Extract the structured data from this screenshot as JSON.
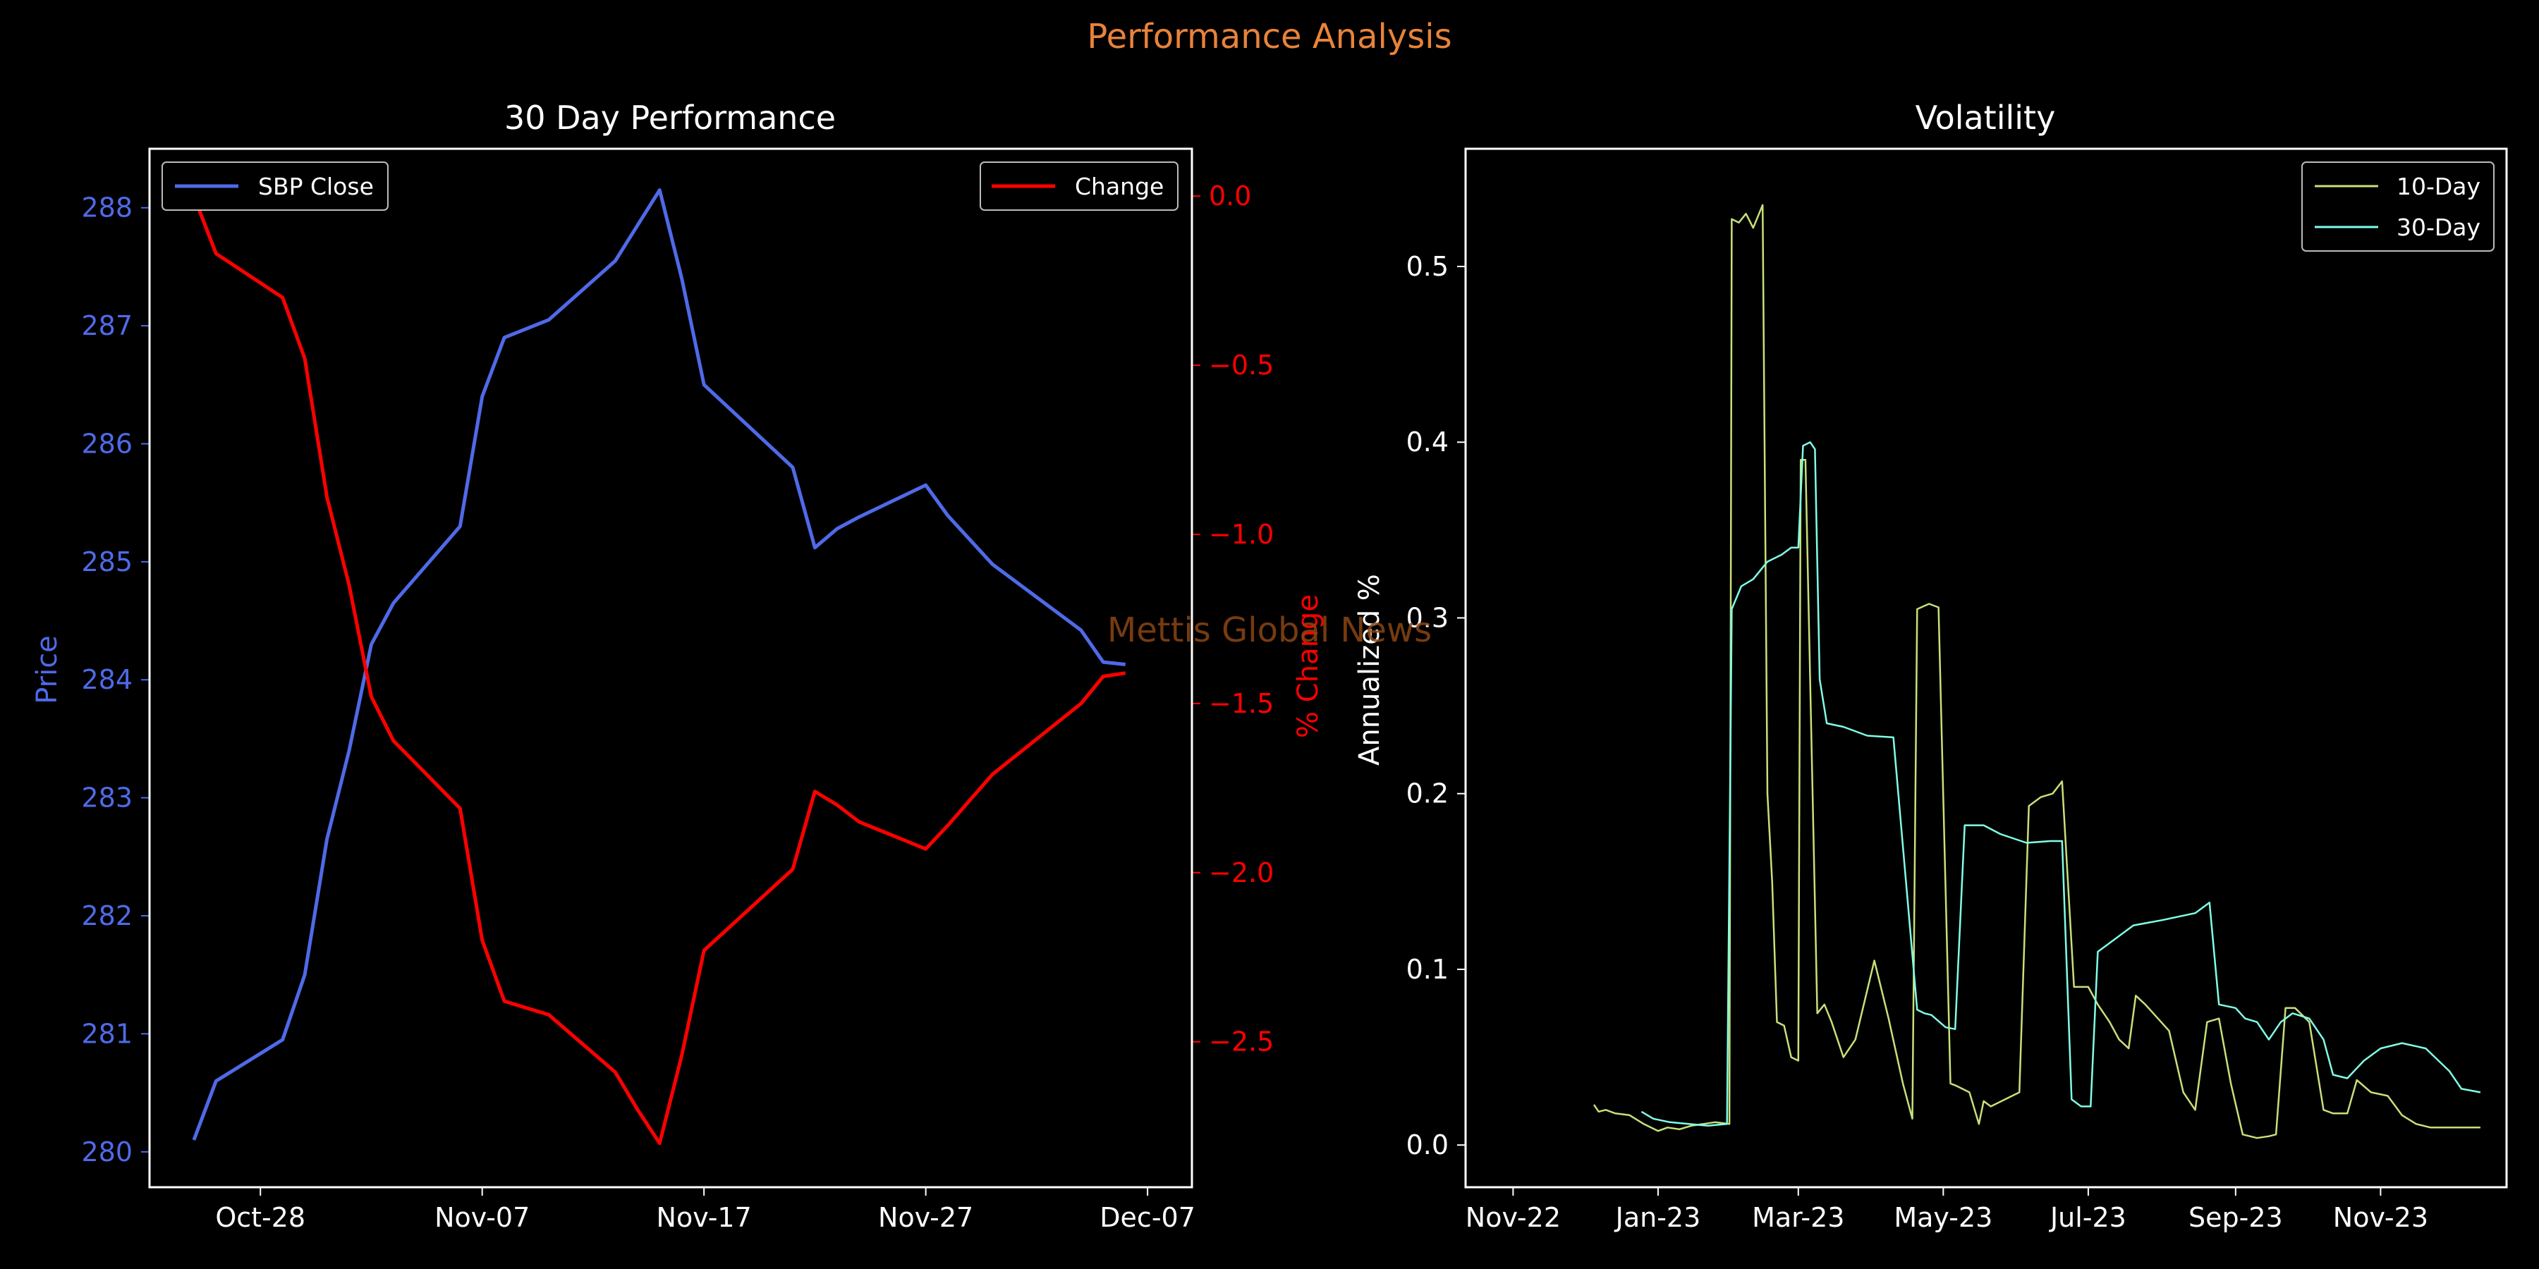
{
  "figure": {
    "suptitle": "Performance Analysis",
    "watermark": "Mettis Global News",
    "colors": {
      "background": "#000000",
      "suptitle": "#e8833a",
      "price": "#4f6ae8",
      "change": "#ff0000",
      "vol10": "#c8e07a",
      "vol30": "#80ffe8",
      "watermark": "#8b4513",
      "axes": "#ffffff"
    }
  },
  "chart_data": [
    {
      "type": "line",
      "title": "30 Day Performance",
      "xlabel": "",
      "x_tick_labels": [
        "Oct-28",
        "Nov-07",
        "Nov-17",
        "Nov-27",
        "Dec-07"
      ],
      "x_tick_dates": [
        "2023-10-28",
        "2023-11-07",
        "2023-11-17",
        "2023-11-27",
        "2023-12-07"
      ],
      "xlim": [
        "2023-10-23",
        "2023-12-09"
      ],
      "y_left": {
        "label": "Price",
        "ylim": [
          279.7,
          288.5
        ],
        "ticks": [
          280,
          281,
          282,
          283,
          284,
          285,
          286,
          287,
          288
        ]
      },
      "y_right": {
        "label": "% Change",
        "ylim": [
          -2.93,
          0.14
        ],
        "ticks": [
          0.0,
          -0.5,
          -1.0,
          -1.5,
          -2.0,
          -2.5
        ],
        "tick_labels": [
          "0.0",
          "−0.5",
          "−1.0",
          "−1.5",
          "−2.0",
          "−2.5"
        ]
      },
      "legend_left": {
        "placement": "upper left",
        "entries": [
          "SBP Close"
        ]
      },
      "legend_right": {
        "placement": "upper right",
        "entries": [
          "Change"
        ]
      },
      "series": [
        {
          "name": "SBP Close",
          "axis": "left",
          "x": [
            "2023-10-25",
            "2023-10-26",
            "2023-10-29",
            "2023-10-30",
            "2023-10-31",
            "2023-11-01",
            "2023-11-02",
            "2023-11-03",
            "2023-11-06",
            "2023-11-07",
            "2023-11-08",
            "2023-11-10",
            "2023-11-13",
            "2023-11-14",
            "2023-11-15",
            "2023-11-16",
            "2023-11-17",
            "2023-11-21",
            "2023-11-22",
            "2023-11-23",
            "2023-11-24",
            "2023-11-27",
            "2023-11-28",
            "2023-11-30",
            "2023-12-04",
            "2023-12-05",
            "2023-12-06"
          ],
          "values": [
            280.1,
            280.6,
            280.95,
            281.5,
            282.65,
            283.4,
            284.3,
            284.65,
            285.3,
            286.4,
            286.9,
            287.05,
            287.55,
            287.85,
            288.15,
            287.4,
            286.5,
            285.8,
            285.12,
            285.28,
            285.38,
            285.65,
            285.39,
            284.98,
            284.42,
            284.15,
            284.13
          ]
        },
        {
          "name": "Change",
          "axis": "right",
          "x": [
            "2023-10-25",
            "2023-10-26",
            "2023-10-29",
            "2023-10-30",
            "2023-10-31",
            "2023-11-01",
            "2023-11-02",
            "2023-11-03",
            "2023-11-06",
            "2023-11-07",
            "2023-11-08",
            "2023-11-10",
            "2023-11-13",
            "2023-11-14",
            "2023-11-15",
            "2023-11-16",
            "2023-11-17",
            "2023-11-21",
            "2023-11-22",
            "2023-11-23",
            "2023-11-24",
            "2023-11-27",
            "2023-11-28",
            "2023-11-30",
            "2023-12-04",
            "2023-12-05",
            "2023-12-06"
          ],
          "values": [
            0.0,
            -0.17,
            -0.3,
            -0.48,
            -0.89,
            -1.15,
            -1.48,
            -1.61,
            -1.81,
            -2.2,
            -2.38,
            -2.42,
            -2.59,
            -2.7,
            -2.8,
            -2.54,
            -2.23,
            -1.99,
            -1.76,
            -1.8,
            -1.85,
            -1.93,
            -1.86,
            -1.71,
            -1.5,
            -1.42,
            -1.41
          ]
        }
      ]
    },
    {
      "type": "line",
      "title": "Volatility",
      "xlabel": "",
      "ylabel": "Annualized %",
      "x_tick_labels": [
        "Nov-22",
        "Jan-23",
        "Mar-23",
        "May-23",
        "Jul-23",
        "Sep-23",
        "Nov-23"
      ],
      "x_tick_dates": [
        "2022-11-01",
        "2023-01-01",
        "2023-03-01",
        "2023-05-01",
        "2023-07-01",
        "2023-09-01",
        "2023-11-01"
      ],
      "xlim": [
        "2022-10-12",
        "2023-12-24"
      ],
      "ylim": [
        -0.024,
        0.567
      ],
      "y_ticks": [
        0.0,
        0.1,
        0.2,
        0.3,
        0.4,
        0.5
      ],
      "y_tick_labels": [
        "0.0",
        "0.1",
        "0.2",
        "0.3",
        "0.4",
        "0.5"
      ],
      "legend": {
        "placement": "upper right",
        "entries": [
          "10-Day",
          "30-Day"
        ]
      },
      "series": [
        {
          "name": "10-Day",
          "x": [
            "2022-12-05",
            "2022-12-07",
            "2022-12-10",
            "2022-12-14",
            "2022-12-20",
            "2022-12-26",
            "2023-01-01",
            "2023-01-05",
            "2023-01-10",
            "2023-01-15",
            "2023-01-20",
            "2023-01-25",
            "2023-01-31",
            "2023-02-01",
            "2023-02-04",
            "2023-02-07",
            "2023-02-10",
            "2023-02-14",
            "2023-02-16",
            "2023-02-18",
            "2023-02-20",
            "2023-02-23",
            "2023-02-26",
            "2023-03-01",
            "2023-03-02",
            "2023-03-04",
            "2023-03-09",
            "2023-03-12",
            "2023-03-15",
            "2023-03-20",
            "2023-03-25",
            "2023-04-02",
            "2023-04-08",
            "2023-04-14",
            "2023-04-18",
            "2023-04-20",
            "2023-04-25",
            "2023-04-29",
            "2023-05-04",
            "2023-05-06",
            "2023-05-12",
            "2023-05-16",
            "2023-05-18",
            "2023-05-21",
            "2023-06-02",
            "2023-06-06",
            "2023-06-11",
            "2023-06-16",
            "2023-06-20",
            "2023-06-25",
            "2023-07-01",
            "2023-07-05",
            "2023-07-10",
            "2023-07-14",
            "2023-07-18",
            "2023-07-21",
            "2023-07-25",
            "2023-08-04",
            "2023-08-10",
            "2023-08-15",
            "2023-08-20",
            "2023-08-25",
            "2023-08-30",
            "2023-09-04",
            "2023-09-10",
            "2023-09-15",
            "2023-09-18",
            "2023-09-22",
            "2023-09-26",
            "2023-10-02",
            "2023-10-08",
            "2023-10-12",
            "2023-10-18",
            "2023-10-22",
            "2023-10-28",
            "2023-11-04",
            "2023-11-10",
            "2023-11-16",
            "2023-11-22",
            "2023-11-28",
            "2023-12-05",
            "2023-12-10",
            "2023-12-13"
          ],
          "values": [
            0.023,
            0.019,
            0.02,
            0.018,
            0.017,
            0.012,
            0.008,
            0.01,
            0.009,
            0.011,
            0.012,
            0.013,
            0.012,
            0.527,
            0.525,
            0.53,
            0.522,
            0.535,
            0.2,
            0.15,
            0.07,
            0.068,
            0.05,
            0.048,
            0.39,
            0.39,
            0.075,
            0.08,
            0.07,
            0.05,
            0.06,
            0.105,
            0.072,
            0.035,
            0.015,
            0.305,
            0.308,
            0.306,
            0.035,
            0.034,
            0.03,
            0.012,
            0.025,
            0.022,
            0.03,
            0.193,
            0.198,
            0.2,
            0.207,
            0.09,
            0.09,
            0.08,
            0.07,
            0.06,
            0.055,
            0.085,
            0.08,
            0.065,
            0.03,
            0.02,
            0.07,
            0.072,
            0.035,
            0.006,
            0.004,
            0.005,
            0.006,
            0.078,
            0.078,
            0.07,
            0.02,
            0.018,
            0.018,
            0.037,
            0.03,
            0.028,
            0.017,
            0.012,
            0.01,
            0.01,
            0.01,
            0.01,
            0.01
          ]
        },
        {
          "name": "30-Day",
          "x": [
            "2022-12-25",
            "2022-12-30",
            "2023-01-06",
            "2023-01-14",
            "2023-01-22",
            "2023-01-30",
            "2023-02-01",
            "2023-02-05",
            "2023-02-10",
            "2023-02-16",
            "2023-02-22",
            "2023-02-26",
            "2023-03-01",
            "2023-03-03",
            "2023-03-06",
            "2023-03-08",
            "2023-03-10",
            "2023-03-13",
            "2023-03-20",
            "2023-03-30",
            "2023-04-10",
            "2023-04-20",
            "2023-04-23",
            "2023-04-26",
            "2023-05-02",
            "2023-05-06",
            "2023-05-10",
            "2023-05-15",
            "2023-05-18",
            "2023-05-25",
            "2023-06-05",
            "2023-06-15",
            "2023-06-20",
            "2023-06-24",
            "2023-06-28",
            "2023-07-02",
            "2023-07-05",
            "2023-07-10",
            "2023-07-20",
            "2023-08-01",
            "2023-08-15",
            "2023-08-21",
            "2023-08-25",
            "2023-09-01",
            "2023-09-05",
            "2023-09-10",
            "2023-09-15",
            "2023-09-20",
            "2023-09-25",
            "2023-10-02",
            "2023-10-08",
            "2023-10-12",
            "2023-10-18",
            "2023-10-25",
            "2023-11-01",
            "2023-11-10",
            "2023-11-20",
            "2023-11-30",
            "2023-12-05",
            "2023-12-13"
          ],
          "values": [
            0.019,
            0.015,
            0.013,
            0.012,
            0.011,
            0.012,
            0.305,
            0.318,
            0.322,
            0.332,
            0.336,
            0.34,
            0.34,
            0.398,
            0.4,
            0.396,
            0.265,
            0.24,
            0.238,
            0.233,
            0.232,
            0.077,
            0.075,
            0.074,
            0.067,
            0.066,
            0.182,
            0.182,
            0.182,
            0.177,
            0.172,
            0.173,
            0.173,
            0.026,
            0.022,
            0.022,
            0.11,
            0.115,
            0.125,
            0.128,
            0.132,
            0.138,
            0.08,
            0.078,
            0.072,
            0.07,
            0.06,
            0.07,
            0.075,
            0.072,
            0.06,
            0.04,
            0.038,
            0.048,
            0.055,
            0.058,
            0.055,
            0.042,
            0.032,
            0.03
          ]
        }
      ]
    }
  ]
}
